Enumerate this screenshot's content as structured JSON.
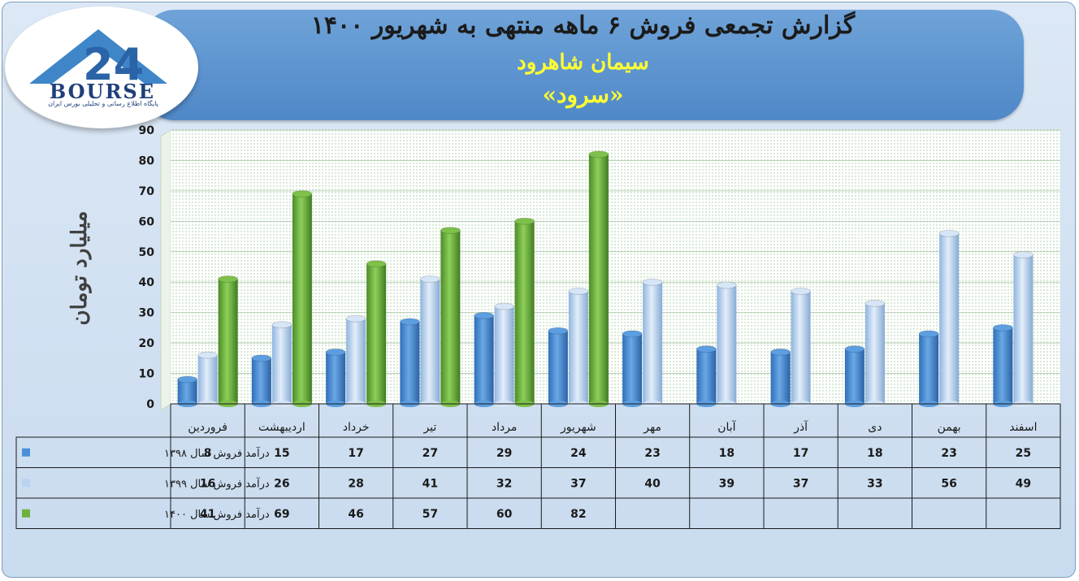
{
  "title": "گزارش تجمعی فروش ۶ ماهه منتهی به شهریور ۱۴۰۰",
  "subtitle": "سیمان شاهرود",
  "subtitle2": "«سرود»",
  "logo": {
    "text": "BOURSE",
    "subtext": "پایگاه اطلاع رسانی و تحلیلی بورس ایران"
  },
  "colors": {
    "s1398": "#4a8fd8",
    "s1399": "#b9d3f0",
    "s1400": "#6fb13f"
  },
  "chart_data": {
    "type": "bar",
    "title": "گزارش تجمعی فروش ۶ ماهه منتهی به شهریور ۱۴۰۰",
    "ylabel": "میلیارد تومان",
    "ylim": [
      0,
      90
    ],
    "yticks": [
      "0",
      "10",
      "20",
      "30",
      "40",
      "50",
      "60",
      "70",
      "80",
      "90"
    ],
    "categories": [
      "فروردین",
      "اردیبهشت",
      "خرداد",
      "تیر",
      "مرداد",
      "شهریور",
      "مهر",
      "آبان",
      "آذر",
      "دی",
      "بهمن",
      "اسفند"
    ],
    "series": [
      {
        "name": "درآمد فروش سال ۱۳۹۸",
        "values": [
          8,
          15,
          17,
          27,
          29,
          24,
          23,
          18,
          17,
          18,
          23,
          25
        ]
      },
      {
        "name": "درآمد فروش سال ۱۳۹۹",
        "values": [
          16,
          26,
          28,
          41,
          32,
          37,
          40,
          39,
          37,
          33,
          56,
          49
        ]
      },
      {
        "name": "درآمد فروش سال ۱۴۰۰",
        "values": [
          41,
          69,
          46,
          57,
          60,
          82,
          null,
          null,
          null,
          null,
          null,
          null
        ]
      }
    ],
    "grid": true,
    "legend": "data-table"
  }
}
